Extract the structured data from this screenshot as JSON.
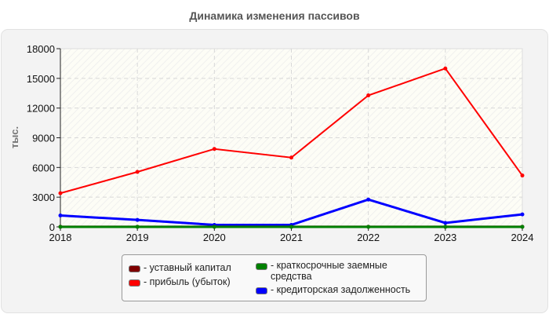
{
  "title": "Динамика изменения пассивов",
  "chart_data": {
    "type": "line",
    "title": "Динамика изменения пассивов",
    "xlabel": "",
    "ylabel": "тыс.",
    "ylim": [
      0,
      18000
    ],
    "yticks": [
      0,
      3000,
      6000,
      9000,
      12000,
      15000,
      18000
    ],
    "grid": true,
    "legend_position": "bottom",
    "categories": [
      "2018",
      "2019",
      "2020",
      "2021",
      "2022",
      "2023",
      "2024"
    ],
    "series": [
      {
        "name": "уставный капитал",
        "color": "#7f0000",
        "values": [
          10,
          10,
          10,
          10,
          10,
          10,
          10
        ]
      },
      {
        "name": "прибыль (убыток)",
        "color": "#ff0000",
        "values": [
          3400,
          5550,
          7870,
          7000,
          13280,
          16000,
          5190
        ]
      },
      {
        "name": "краткосрочные заемные средства",
        "color": "#008000",
        "values": [
          0,
          0,
          0,
          0,
          0,
          0,
          0
        ]
      },
      {
        "name": "кредиторская задолженность",
        "color": "#0000ff",
        "values": [
          1150,
          700,
          200,
          200,
          2760,
          400,
          1260
        ]
      }
    ]
  },
  "legend": {
    "items": [
      {
        "label": "- уставный капитал",
        "color": "#7f0000"
      },
      {
        "label": "- прибыль (убыток)",
        "color": "#ff0000"
      },
      {
        "label": "- краткосрочные заемные средства",
        "color": "#008000"
      },
      {
        "label": "- кредиторская задолженность",
        "color": "#0000ff"
      }
    ]
  }
}
